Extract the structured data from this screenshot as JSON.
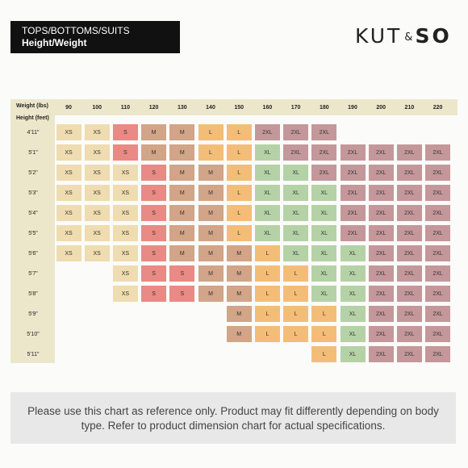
{
  "title": {
    "line1": "TOPS/BOTTOMS/SUITS",
    "line2": "Height/Weight"
  },
  "brand": {
    "left": "KUT",
    "amp": "&",
    "right": "SO"
  },
  "chart_data": {
    "type": "table",
    "corner_weight_label": "Weight (lbs)",
    "corner_height_label": "Height (feet)",
    "weights": [
      "90",
      "100",
      "110",
      "120",
      "130",
      "140",
      "150",
      "160",
      "170",
      "180",
      "190",
      "200",
      "210",
      "220"
    ],
    "heights": [
      "4'11\"",
      "5'1\"",
      "5'2\"",
      "5'3\"",
      "5'4\"",
      "5'5\"",
      "5'6\"",
      "5'7\"",
      "5'8\"",
      "5'9\"",
      "5'10\"",
      "5'11\""
    ],
    "sizes": [
      [
        "XS",
        "XS",
        "S",
        "M",
        "M",
        "L",
        "L",
        "2XL",
        "2XL",
        "2XL",
        "",
        "",
        "",
        ""
      ],
      [
        "XS",
        "XS",
        "S",
        "M",
        "M",
        "L",
        "L",
        "XL",
        "2XL",
        "2XL",
        "2XL",
        "2XL",
        "2XL",
        "2XL"
      ],
      [
        "XS",
        "XS",
        "XS",
        "S",
        "M",
        "M",
        "L",
        "XL",
        "XL",
        "2XL",
        "2XL",
        "2XL",
        "2XL",
        "2XL"
      ],
      [
        "XS",
        "XS",
        "XS",
        "S",
        "M",
        "M",
        "L",
        "XL",
        "XL",
        "XL",
        "2XL",
        "2XL",
        "2XL",
        "2XL"
      ],
      [
        "XS",
        "XS",
        "XS",
        "S",
        "M",
        "M",
        "L",
        "XL",
        "XL",
        "XL",
        "2XL",
        "2XL",
        "2XL",
        "2XL"
      ],
      [
        "XS",
        "XS",
        "XS",
        "S",
        "M",
        "M",
        "L",
        "XL",
        "XL",
        "XL",
        "2XL",
        "2XL",
        "2XL",
        "2XL"
      ],
      [
        "XS",
        "XS",
        "XS",
        "S",
        "M",
        "M",
        "M",
        "L",
        "XL",
        "XL",
        "XL",
        "2XL",
        "2XL",
        "2XL"
      ],
      [
        "",
        "",
        "XS",
        "S",
        "S",
        "M",
        "M",
        "L",
        "L",
        "XL",
        "XL",
        "2XL",
        "2XL",
        "2XL"
      ],
      [
        "",
        "",
        "XS",
        "S",
        "S",
        "M",
        "M",
        "L",
        "L",
        "XL",
        "XL",
        "2XL",
        "2XL",
        "2XL"
      ],
      [
        "",
        "",
        "",
        "",
        "",
        "",
        "M",
        "L",
        "L",
        "L",
        "XL",
        "2XL",
        "2XL",
        "2XL"
      ],
      [
        "",
        "",
        "",
        "",
        "",
        "",
        "M",
        "L",
        "L",
        "L",
        "XL",
        "2XL",
        "2XL",
        "2XL"
      ],
      [
        "",
        "",
        "",
        "",
        "",
        "",
        "",
        "",
        "",
        "L",
        "XL",
        "2XL",
        "2XL",
        "2XL"
      ]
    ],
    "colors": {
      "XS": "#efdcb0",
      "S": "#e98a84",
      "M": "#d2a488",
      "L": "#f3bd78",
      "XL": "#b4d2a6",
      "2XL": "#c4979b",
      "header": "#ece7cb"
    }
  },
  "note": "Please use this chart as reference only. Product may fit differently depending on body type. Refer to product dimension chart for actual specifications."
}
